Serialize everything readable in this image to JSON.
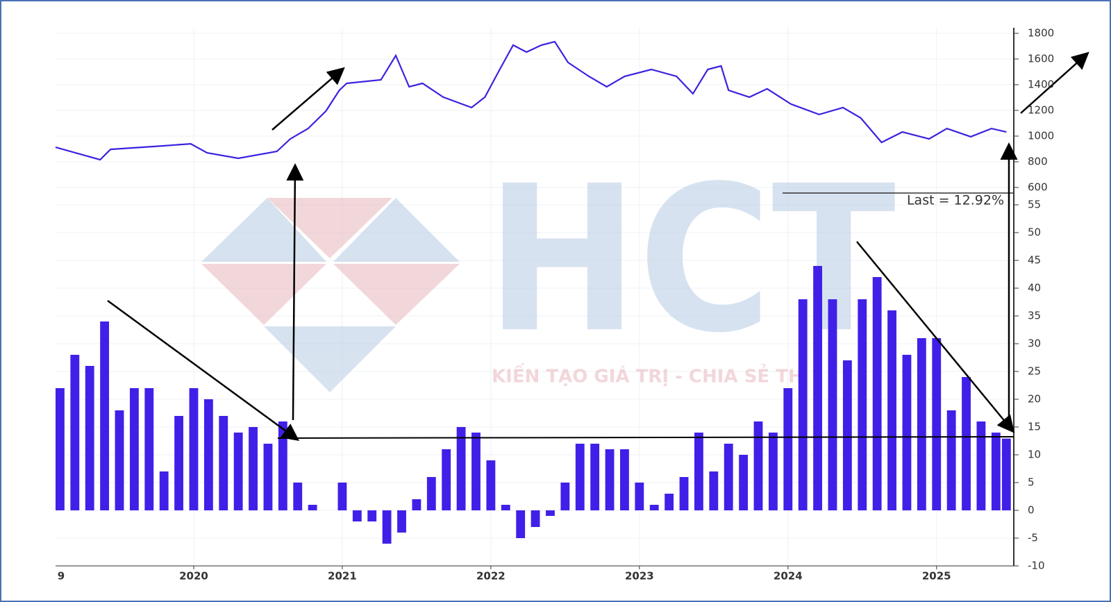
{
  "chart_data": [
    {
      "type": "line",
      "color": "#3a22e0",
      "x": [
        2019.07,
        2019.37,
        2019.44,
        2019.79,
        2019.98,
        2020.09,
        2020.3,
        2020.56,
        2020.65,
        2020.77,
        2020.89,
        2020.98,
        2021.03,
        2021.26,
        2021.36,
        2021.45,
        2021.54,
        2021.68,
        2021.87,
        2021.96,
        2022.06,
        2022.15,
        2022.24,
        2022.34,
        2022.43,
        2022.52,
        2022.66,
        2022.78,
        2022.9,
        2023.08,
        2023.25,
        2023.36,
        2023.46,
        2023.55,
        2023.6,
        2023.74,
        2023.86,
        2024.02,
        2024.21,
        2024.37,
        2024.49,
        2024.63,
        2024.77,
        2024.95,
        2025.07,
        2025.23,
        2025.37,
        2025.47
      ],
      "values": [
        913,
        816,
        897,
        924,
        940,
        870,
        827,
        881,
        978,
        1059,
        1195,
        1357,
        1411,
        1438,
        1627,
        1384,
        1411,
        1303,
        1222,
        1303,
        1519,
        1708,
        1654,
        1708,
        1735,
        1573,
        1465,
        1384,
        1465,
        1519,
        1465,
        1330,
        1519,
        1546,
        1357,
        1303,
        1368,
        1249,
        1168,
        1222,
        1141,
        951,
        1032,
        978,
        1059,
        995,
        1059,
        1032
      ],
      "xlim": [
        2019.07,
        2025.52
      ],
      "ylim": [
        600,
        1800
      ],
      "yticks": [
        600,
        800,
        1000,
        1200,
        1400,
        1600,
        1800
      ],
      "grid": true
    },
    {
      "type": "bar",
      "color": "#4020e8",
      "x": [
        2019.1,
        2019.2,
        2019.3,
        2019.4,
        2019.5,
        2019.6,
        2019.7,
        2019.8,
        2019.9,
        2020.0,
        2020.1,
        2020.2,
        2020.3,
        2020.4,
        2020.5,
        2020.6,
        2020.7,
        2020.8,
        2020.9,
        2021.0,
        2021.1,
        2021.2,
        2021.3,
        2021.4,
        2021.5,
        2021.6,
        2021.7,
        2021.8,
        2021.9,
        2022.0,
        2022.1,
        2022.2,
        2022.3,
        2022.4,
        2022.5,
        2022.6,
        2022.7,
        2022.8,
        2022.9,
        2023.0,
        2023.1,
        2023.2,
        2023.3,
        2023.4,
        2023.5,
        2023.6,
        2023.7,
        2023.8,
        2023.9,
        2024.0,
        2024.1,
        2024.2,
        2024.3,
        2024.4,
        2024.5,
        2024.6,
        2024.7,
        2024.8,
        2024.9,
        2025.0,
        2025.1,
        2025.2,
        2025.3,
        2025.4,
        2025.47
      ],
      "values": [
        22,
        28,
        26,
        34,
        18,
        22,
        22,
        7,
        17,
        22,
        20,
        17,
        14,
        15,
        12,
        16,
        5,
        1,
        0,
        5,
        -2,
        -2,
        -6,
        -4,
        2,
        6,
        11,
        15,
        14,
        9,
        1,
        -5,
        -3,
        -1,
        5,
        12,
        12,
        11,
        11,
        5,
        1,
        3,
        6,
        14,
        7,
        12,
        10,
        16,
        14,
        22,
        38,
        44,
        38,
        27,
        38,
        42,
        36,
        28,
        31,
        31,
        18,
        24,
        16,
        14,
        12.92
      ],
      "xlim": [
        2019.07,
        2025.52
      ],
      "ylim": [
        -10,
        55
      ],
      "yticks": [
        -10,
        -5,
        0,
        5,
        10,
        15,
        20,
        25,
        30,
        35,
        40,
        45,
        50,
        55
      ],
      "xticks": [
        {
          "value": 2019,
          "label": "9"
        },
        2020,
        2021,
        2022,
        2023,
        2024,
        2025
      ],
      "annotation": "Last = 12.92%",
      "grid": true
    }
  ],
  "watermark": {
    "logo": "HCT",
    "tagline": "KIẾN TẠO GIÁ TRỊ - CHIA SẺ TH"
  }
}
